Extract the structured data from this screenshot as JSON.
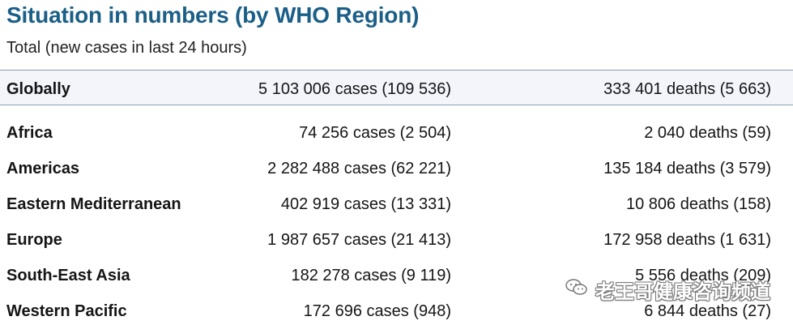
{
  "header": {
    "title": "Situation in numbers (by WHO Region)",
    "subtitle": "Total (new cases in last 24 hours)"
  },
  "table": {
    "global": {
      "region": "Globally",
      "cases": "5 103 006 cases (109 536)",
      "deaths": "333 401 deaths (5 663)"
    },
    "rows": [
      {
        "region": "Africa",
        "cases": "74 256 cases (2 504)",
        "deaths": "2 040 deaths (59)"
      },
      {
        "region": "Americas",
        "cases": "2 282 488 cases (62 221)",
        "deaths": "135 184 deaths (3 579)"
      },
      {
        "region": "Eastern Mediterranean",
        "cases": "402 919 cases (13 331)",
        "deaths": "10 806 deaths (158)"
      },
      {
        "region": "Europe",
        "cases": "1 987 657 cases (21 413)",
        "deaths": "172 958 deaths (1 631)"
      },
      {
        "region": "South-East Asia",
        "cases": "182 278 cases (9 119)",
        "deaths": "5 556 deaths (209)"
      },
      {
        "region": "Western Pacific",
        "cases": "172 696 cases (948)",
        "deaths": "6 844 deaths (27)"
      }
    ]
  },
  "watermark": {
    "text": "老王哥健康咨询频道",
    "icon": "wechat-icon"
  },
  "colors": {
    "title": "#1b5f87",
    "band": "#f3f5fb",
    "rule": "#8a9fb3"
  }
}
